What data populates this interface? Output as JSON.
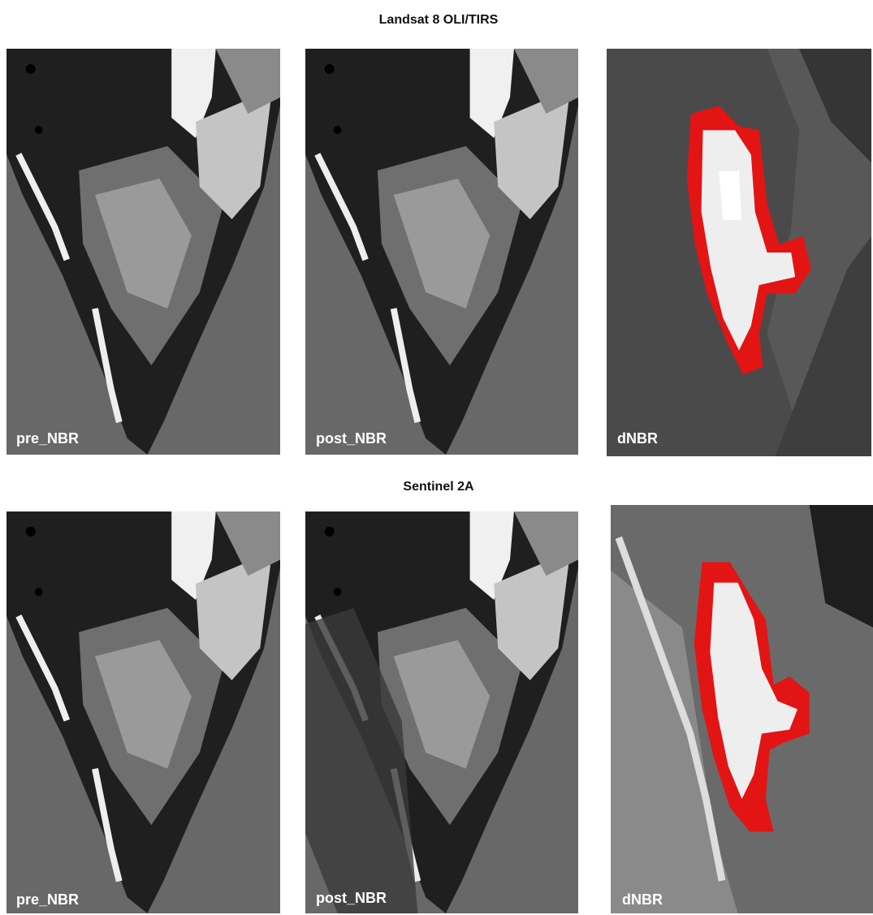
{
  "sections": [
    {
      "title": "Landsat 8 OLI/TIRS",
      "panels": [
        {
          "label": "pre_NBR"
        },
        {
          "label": "post_NBR"
        },
        {
          "label": "dNBR"
        }
      ]
    },
    {
      "title": "Sentinel 2A",
      "panels": [
        {
          "label": "pre_NBR"
        },
        {
          "label": "post_NBR"
        },
        {
          "label": "dNBR"
        }
      ]
    }
  ]
}
